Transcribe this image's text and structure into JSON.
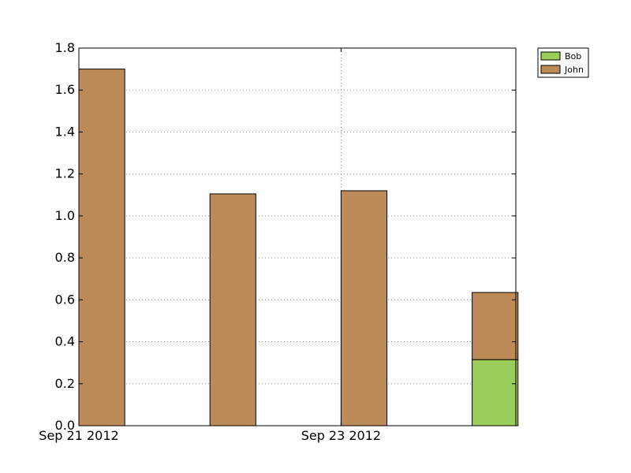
{
  "chart_data": {
    "type": "bar",
    "stacked": true,
    "x": [
      "2012-09-21",
      "2012-09-22",
      "2012-09-23",
      "2012-09-24"
    ],
    "series": [
      {
        "name": "Bob",
        "color": "#9ACD5A",
        "values": [
          0,
          0,
          0,
          0.315
        ]
      },
      {
        "name": "John",
        "color": "#BC8B57",
        "values": [
          1.7,
          1.105,
          1.12,
          0.32
        ]
      }
    ],
    "xticks": [
      {
        "date": "2012-09-21",
        "label": "Sep 21 2012"
      },
      {
        "date": "2012-09-23",
        "label": "Sep 23 2012"
      }
    ],
    "xlim": [
      "2012-09-21",
      "2012-09-24 08:00"
    ],
    "bar_width_days": 0.35,
    "ylim": [
      0,
      1.8
    ],
    "yticks": [
      "0.0",
      "0.2",
      "0.4",
      "0.6",
      "0.8",
      "1.0",
      "1.2",
      "1.4",
      "1.6",
      "1.8"
    ],
    "grid": true,
    "legend": {
      "placement": "outside-top-right",
      "order": [
        "Bob",
        "John"
      ]
    },
    "title": "",
    "xlabel": "",
    "ylabel": ""
  }
}
